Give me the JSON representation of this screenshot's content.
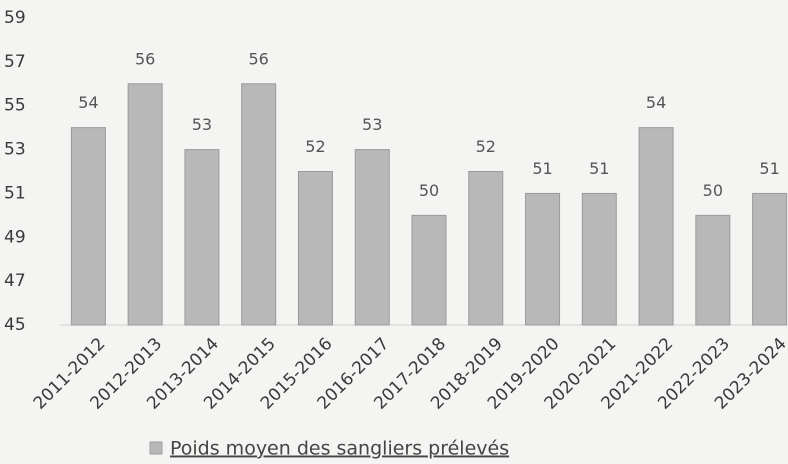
{
  "chart_data": {
    "type": "bar",
    "categories": [
      "2011-2012",
      "2012-2013",
      "2013-2014",
      "2014-2015",
      "2015-2016",
      "2016-2017",
      "2017-2018",
      "2018-2019",
      "2019-2020",
      "2020-2021",
      "2021-2022",
      "2022-2023",
      "2023-2024"
    ],
    "series": [
      {
        "name": "Poids moyen des sangliers prélevés",
        "color": "#b8b8b8",
        "values": [
          54,
          56,
          53,
          56,
          52,
          53,
          50,
          52,
          51,
          51,
          54,
          50,
          51
        ]
      }
    ],
    "ylim": [
      45,
      59
    ],
    "yticks": [
      45,
      47,
      49,
      51,
      53,
      55,
      57,
      59
    ],
    "grid": false,
    "legend": "bottom"
  }
}
